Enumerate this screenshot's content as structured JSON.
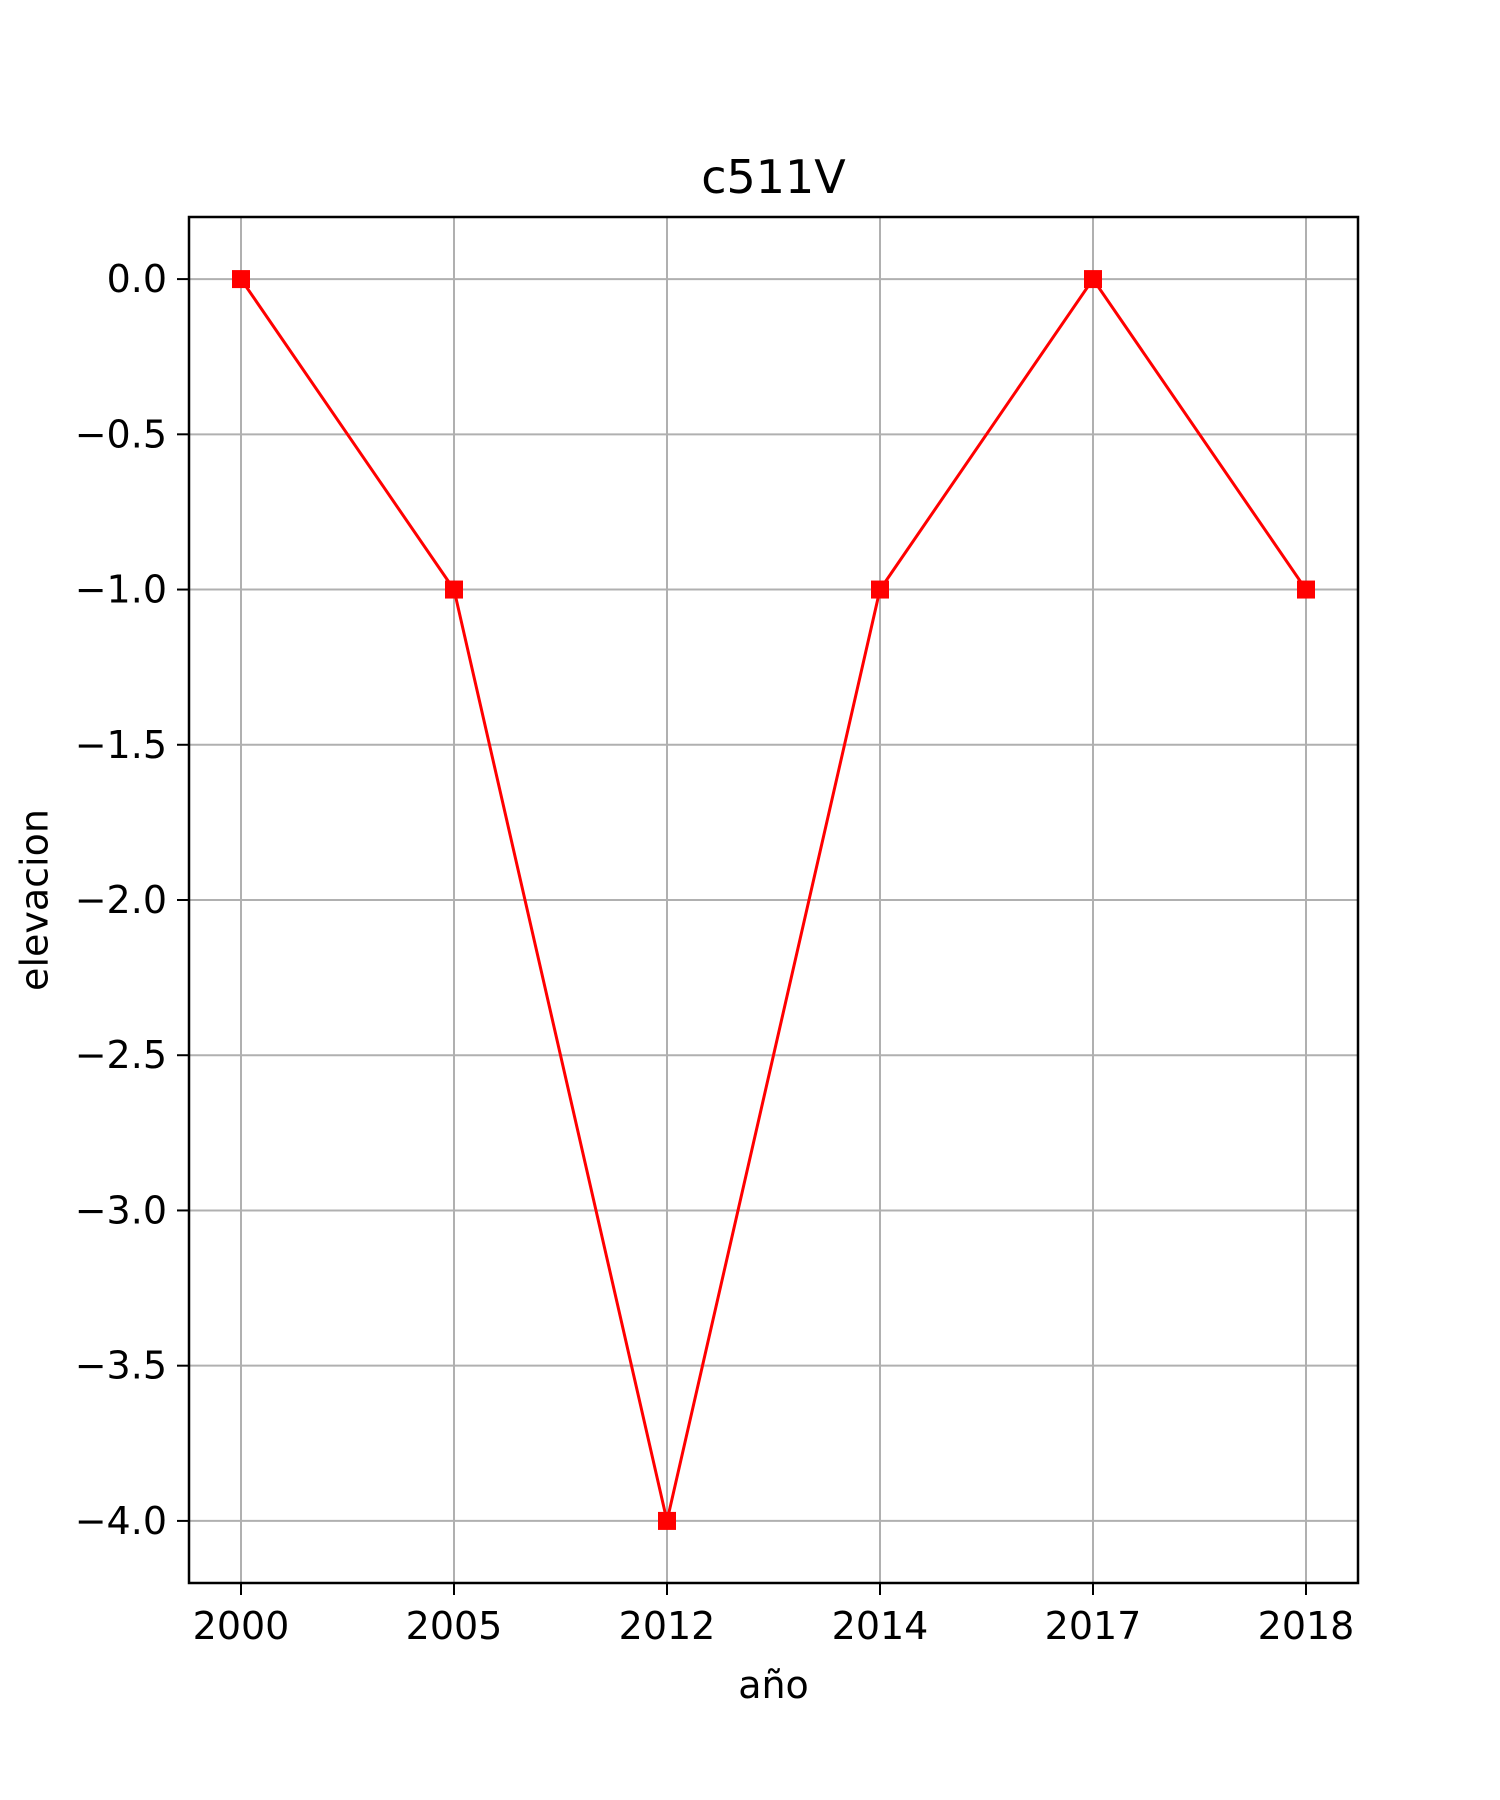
{
  "chart_data": {
    "type": "line",
    "title": "c511V",
    "xlabel": "año",
    "ylabel": "elevacion",
    "categories": [
      "2000",
      "2005",
      "2012",
      "2014",
      "2017",
      "2018"
    ],
    "series": [
      {
        "values": [
          0,
          -1,
          -4,
          -1,
          0,
          -1
        ],
        "color": "#ff0000",
        "marker": "square"
      }
    ],
    "ylim": [
      -4.2,
      0.2
    ],
    "yticks": [
      0.0,
      -0.5,
      -1.0,
      -1.5,
      -2.0,
      -2.5,
      -3.0,
      -3.5,
      -4.0
    ],
    "ytick_labels": [
      "0.0",
      "−0.5",
      "−1.0",
      "−1.5",
      "−2.0",
      "−2.5",
      "−3.0",
      "−3.5",
      "−4.0"
    ],
    "grid": true,
    "grid_color": "#b0b0b0",
    "legend": false
  }
}
